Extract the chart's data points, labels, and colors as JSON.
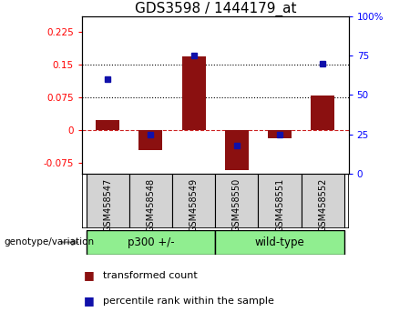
{
  "title": "GDS3598 / 1444179_at",
  "samples": [
    "GSM458547",
    "GSM458548",
    "GSM458549",
    "GSM458550",
    "GSM458551",
    "GSM458552"
  ],
  "bar_values": [
    0.022,
    -0.045,
    0.168,
    -0.092,
    -0.018,
    0.078
  ],
  "percentile_values": [
    60,
    25,
    75,
    18,
    25,
    70
  ],
  "bar_color": "#8B1010",
  "dot_color": "#1010AA",
  "ylim_left": [
    -0.1,
    0.26
  ],
  "ylim_right": [
    0,
    100
  ],
  "yticks_left": [
    -0.075,
    0.0,
    0.075,
    0.15,
    0.225
  ],
  "ytick_labels_left": [
    "-0.075",
    "0",
    "0.075",
    "0.15",
    "0.225"
  ],
  "yticks_right": [
    0,
    25,
    50,
    75,
    100
  ],
  "ytick_labels_right": [
    "0",
    "25",
    "50",
    "75",
    "100%"
  ],
  "hlines": [
    0.075,
    0.15
  ],
  "zero_line": 0.0,
  "group1_label": "p300 +/-",
  "group2_label": "wild-type",
  "group_color": "#90EE90",
  "genotype_label": "genotype/variation",
  "legend_bar": "transformed count",
  "legend_dot": "percentile rank within the sample",
  "title_fontsize": 11,
  "tick_fontsize": 7.5,
  "label_fontsize": 8,
  "sample_fontsize": 7
}
